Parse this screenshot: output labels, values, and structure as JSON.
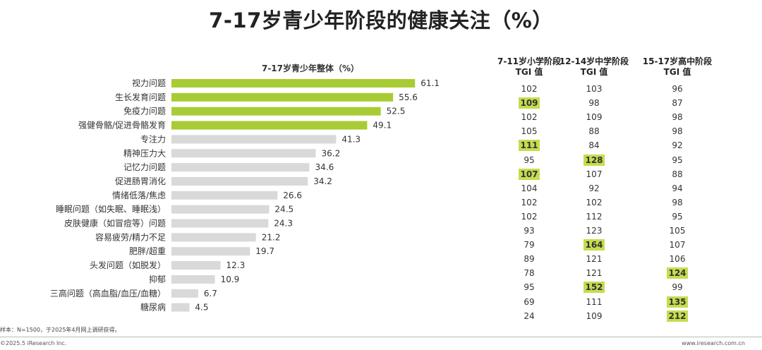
{
  "title": "7-17岁青少年阶段的健康关注（%）",
  "chart_data": {
    "type": "bar",
    "orientation": "horizontal",
    "subtitle": "7-17岁青少年整体（%）",
    "categories": [
      "视力问题",
      "生长发育问题",
      "免疫力问题",
      "强健骨骼/促进骨骼发育",
      "专注力",
      "精神压力大",
      "记忆力问题",
      "促进肠胃消化",
      "情绪低落/焦虑",
      "睡眠问题（如失眠、睡眠浅）",
      "皮肤健康（如冒痘等）问题",
      "容易疲劳/精力不足",
      "肥胖/超重",
      "头发问题（如脱发）",
      "抑郁",
      "三高问题（高血脂/血压/血糖）",
      "糖尿病"
    ],
    "values": [
      61.1,
      55.6,
      52.5,
      49.1,
      41.3,
      36.2,
      34.6,
      34.2,
      26.6,
      24.5,
      24.3,
      21.2,
      19.7,
      12.3,
      10.9,
      6.7,
      4.5
    ],
    "highlight_count": 4,
    "colors": {
      "highlight": "#a8cc35",
      "normal": "#d9d9d9"
    },
    "xlim": [
      0,
      70
    ]
  },
  "tgi": {
    "headers": [
      {
        "line1": "7-11岁小学阶段",
        "line2": "TGI 值"
      },
      {
        "line1": "12-14岁中学阶段",
        "line2": "TGI 值"
      },
      {
        "line1": "15-17岁高中阶段",
        "line2": "TGI 值"
      }
    ],
    "columns": [
      [
        102,
        109,
        102,
        105,
        111,
        95,
        107,
        104,
        102,
        102,
        93,
        79,
        89,
        78,
        95,
        69,
        24
      ],
      [
        103,
        98,
        109,
        88,
        84,
        128,
        107,
        92,
        102,
        112,
        123,
        164,
        121,
        121,
        152,
        111,
        109
      ],
      [
        96,
        87,
        98,
        98,
        92,
        95,
        88,
        94,
        98,
        95,
        105,
        107,
        106,
        124,
        99,
        135,
        212
      ]
    ],
    "highlighted": [
      [
        1,
        4,
        6
      ],
      [
        5,
        11,
        14
      ],
      [
        13,
        15,
        16
      ]
    ],
    "highlight_color": "#c6dc4f"
  },
  "sample_note": "样本：N=1500，于2025年4月网上调研获得。",
  "footer": {
    "copyright": "©2025.5 iResearch Inc.",
    "website": "www.iresearch.com.cn"
  }
}
